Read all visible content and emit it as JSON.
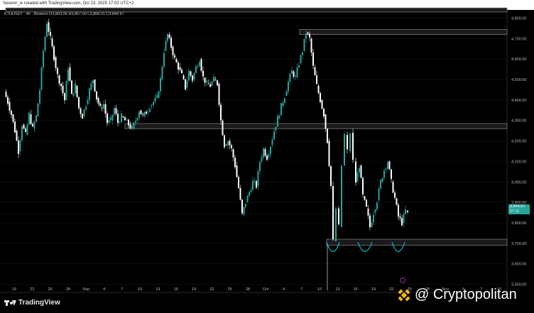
{
  "header": {
    "author_line": "Sevenn_w created with TradingView.com, Oct 23, 2025 17:02 UTC+2",
    "symbol_line": "ETHUSDT · 4h · Binance  O3,863.06  H3,867.00  L3,808.01  C3,844.97"
  },
  "footer": {
    "brand": "TradingView"
  },
  "watermark": {
    "text": "@ Cryptopolitan",
    "icon": "binance-logo-icon"
  },
  "price_tag": {
    "price": "3,844.97",
    "countdown": "57:11",
    "color": "#26a69a"
  },
  "colors": {
    "up": "#26a69a",
    "down": "#ffffff",
    "zone": "#5a5a5a",
    "annotation": "#00bcd4",
    "background": "#000000"
  },
  "chart_data": {
    "type": "candlestick",
    "title": "",
    "timeframe": "4h",
    "ylim": [
      3460,
      4840
    ],
    "y_ticks": [
      4800,
      4700,
      4600,
      4500,
      4400,
      4300,
      4200,
      4100,
      4000,
      3900,
      3800,
      3700,
      3600,
      3500
    ],
    "y_tick_labels": [
      "4,800.00",
      "4,700.00",
      "4,600.00",
      "4,500.00",
      "4,400.00",
      "4,300.00",
      "4,200.00",
      "4,100.00",
      "4,000.00",
      "3,900.00",
      "3,800.00",
      "3,700.00",
      "3,600.00",
      "3,500.00"
    ],
    "x_ticks": [
      "19",
      "22",
      "25",
      "28",
      "Sep",
      "4",
      "7",
      "10",
      "13",
      "16",
      "19",
      "22",
      "25",
      "28",
      "Oct",
      "4",
      "7",
      "10",
      "13",
      "16",
      "19",
      "22",
      "25",
      "28",
      "Nov",
      "4",
      "7",
      "10"
    ],
    "close_path": [
      [
        0,
        4440
      ],
      [
        5,
        4390
      ],
      [
        10,
        4330
      ],
      [
        15,
        4250
      ],
      [
        20,
        4150
      ],
      [
        25,
        4280
      ],
      [
        30,
        4230
      ],
      [
        35,
        4330
      ],
      [
        40,
        4260
      ],
      [
        45,
        4320
      ],
      [
        50,
        4450
      ],
      [
        55,
        4640
      ],
      [
        60,
        4780
      ],
      [
        65,
        4700
      ],
      [
        70,
        4610
      ],
      [
        75,
        4520
      ],
      [
        80,
        4470
      ],
      [
        85,
        4400
      ],
      [
        90,
        4560
      ],
      [
        95,
        4420
      ],
      [
        100,
        4470
      ],
      [
        105,
        4360
      ],
      [
        110,
        4320
      ],
      [
        115,
        4380
      ],
      [
        120,
        4450
      ],
      [
        125,
        4500
      ],
      [
        130,
        4410
      ],
      [
        135,
        4360
      ],
      [
        140,
        4380
      ],
      [
        145,
        4290
      ],
      [
        150,
        4300
      ],
      [
        155,
        4360
      ],
      [
        160,
        4290
      ],
      [
        165,
        4320
      ],
      [
        170,
        4300
      ],
      [
        175,
        4280
      ],
      [
        180,
        4260
      ],
      [
        185,
        4300
      ],
      [
        190,
        4350
      ],
      [
        195,
        4320
      ],
      [
        200,
        4340
      ],
      [
        205,
        4370
      ],
      [
        210,
        4390
      ],
      [
        215,
        4410
      ],
      [
        220,
        4500
      ],
      [
        225,
        4640
      ],
      [
        230,
        4720
      ],
      [
        235,
        4660
      ],
      [
        240,
        4600
      ],
      [
        245,
        4560
      ],
      [
        250,
        4520
      ],
      [
        255,
        4460
      ],
      [
        260,
        4540
      ],
      [
        265,
        4500
      ],
      [
        270,
        4560
      ],
      [
        275,
        4600
      ],
      [
        280,
        4510
      ],
      [
        285,
        4480
      ],
      [
        290,
        4470
      ],
      [
        295,
        4500
      ],
      [
        300,
        4480
      ],
      [
        305,
        4300
      ],
      [
        310,
        4180
      ],
      [
        315,
        4200
      ],
      [
        320,
        4160
      ],
      [
        325,
        4080
      ],
      [
        330,
        3970
      ],
      [
        335,
        3840
      ],
      [
        340,
        3900
      ],
      [
        345,
        3950
      ],
      [
        350,
        4000
      ],
      [
        355,
        3980
      ],
      [
        360,
        4100
      ],
      [
        365,
        4160
      ],
      [
        370,
        4120
      ],
      [
        375,
        4180
      ],
      [
        380,
        4250
      ],
      [
        385,
        4310
      ],
      [
        390,
        4370
      ],
      [
        395,
        4420
      ],
      [
        400,
        4490
      ],
      [
        405,
        4540
      ],
      [
        410,
        4510
      ],
      [
        415,
        4580
      ],
      [
        420,
        4640
      ],
      [
        425,
        4730
      ],
      [
        430,
        4700
      ],
      [
        435,
        4560
      ],
      [
        440,
        4470
      ],
      [
        445,
        4400
      ],
      [
        450,
        4330
      ],
      [
        455,
        4200
      ],
      [
        460,
        3980
      ],
      [
        463,
        3710
      ],
      [
        467,
        3870
      ],
      [
        471,
        3780
      ],
      [
        475,
        4080
      ],
      [
        479,
        4230
      ],
      [
        483,
        4150
      ],
      [
        487,
        4240
      ],
      [
        491,
        4100
      ],
      [
        495,
        4000
      ],
      [
        500,
        4080
      ],
      [
        505,
        3930
      ],
      [
        510,
        3870
      ],
      [
        515,
        3780
      ],
      [
        520,
        3850
      ],
      [
        525,
        3910
      ],
      [
        530,
        4000
      ],
      [
        535,
        4060
      ],
      [
        540,
        4100
      ],
      [
        545,
        4000
      ],
      [
        550,
        3920
      ],
      [
        555,
        3830
      ],
      [
        560,
        3800
      ],
      [
        565,
        3860
      ],
      [
        568,
        3845
      ]
    ],
    "zones": [
      {
        "label": "top-resistance",
        "price_top": 4850,
        "price_bottom": 4830
      },
      {
        "label": "local-high",
        "price_top": 4745,
        "price_bottom": 4720
      },
      {
        "label": "mid-range",
        "price_top": 4285,
        "price_bottom": 4260
      },
      {
        "label": "support",
        "price_top": 3720,
        "price_bottom": 3690
      }
    ],
    "annotation": "triple-bottom arcs over support"
  }
}
